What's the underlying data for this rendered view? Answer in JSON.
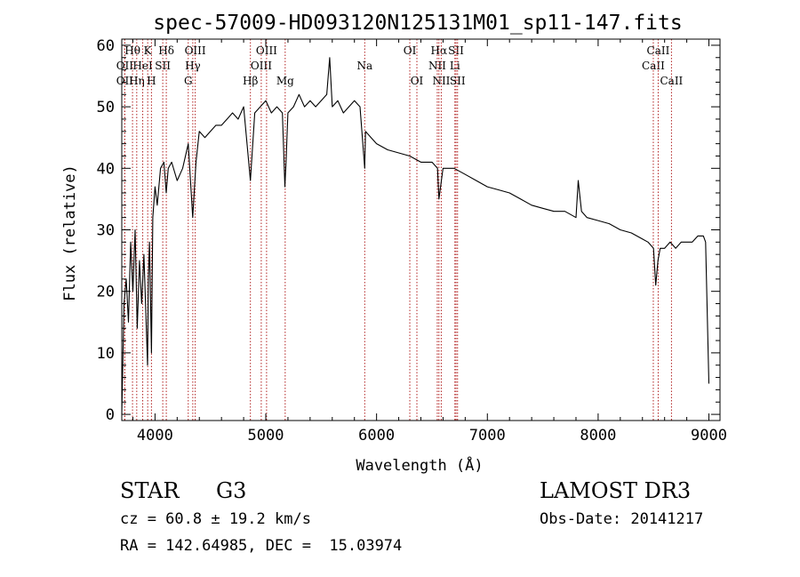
{
  "chart_data": {
    "type": "line",
    "title": "spec-57009-HD093120N125131M01_sp11-147.fits",
    "xlabel": "Wavelength (Å)",
    "ylabel": "Flux (relative)",
    "xlim": [
      3700,
      9100
    ],
    "ylim": [
      -1,
      61
    ],
    "xticks": [
      4000,
      5000,
      6000,
      7000,
      8000,
      9000
    ],
    "yticks": [
      0,
      10,
      20,
      30,
      40,
      50,
      60
    ],
    "grid": false,
    "line_color": "#000000",
    "marker_color": "#b22222",
    "series": [
      {
        "x": [
          3700,
          3720,
          3740,
          3760,
          3780,
          3800,
          3820,
          3840,
          3860,
          3880,
          3900,
          3920,
          3933,
          3940,
          3950,
          3968,
          3980,
          4000,
          4020,
          4050,
          4080,
          4101,
          4120,
          4150,
          4200,
          4250,
          4300,
          4340,
          4370,
          4400,
          4450,
          4500,
          4550,
          4600,
          4650,
          4700,
          4750,
          4800,
          4861,
          4900,
          4950,
          5000,
          5050,
          5100,
          5150,
          5172,
          5183,
          5200,
          5250,
          5300,
          5350,
          5400,
          5450,
          5500,
          5550,
          5577,
          5600,
          5650,
          5700,
          5750,
          5800,
          5850,
          5893,
          5900,
          5950,
          6000,
          6100,
          6200,
          6300,
          6400,
          6500,
          6550,
          6563,
          6600,
          6700,
          6800,
          6900,
          7000,
          7100,
          7200,
          7300,
          7400,
          7500,
          7600,
          7700,
          7800,
          7820,
          7850,
          7900,
          8000,
          8100,
          8200,
          8300,
          8400,
          8450,
          8500,
          8520,
          8540,
          8560,
          8600,
          8650,
          8700,
          8750,
          8800,
          8850,
          8900,
          8950,
          8970,
          9000
        ],
        "y": [
          0,
          18,
          22,
          15,
          28,
          20,
          30,
          14,
          25,
          18,
          26,
          15,
          8,
          22,
          28,
          10,
          32,
          37,
          34,
          40,
          41,
          36,
          40,
          41,
          38,
          40,
          44,
          32,
          41,
          46,
          45,
          46,
          47,
          47,
          48,
          49,
          48,
          50,
          38,
          49,
          50,
          51,
          49,
          50,
          49,
          37,
          41,
          49,
          50,
          52,
          50,
          51,
          50,
          51,
          52,
          58,
          50,
          51,
          49,
          50,
          51,
          50,
          40,
          46,
          45,
          44,
          43,
          42.5,
          42,
          41,
          41,
          40,
          35,
          40,
          40,
          39,
          38,
          37,
          36.5,
          36,
          35,
          34,
          33.5,
          33,
          33,
          32,
          38,
          33,
          32,
          31.5,
          31,
          30,
          29.5,
          28.5,
          28,
          27,
          21,
          25,
          27,
          27,
          28,
          27,
          28,
          28,
          28,
          29,
          29,
          28,
          5
        ]
      }
    ],
    "lines_top": [
      {
        "w": 3797,
        "label": "Hθ",
        "row": 0
      },
      {
        "w": 3727,
        "label": "OII",
        "row": 1
      },
      {
        "w": 3727,
        "label": "OII",
        "row": 2
      },
      {
        "w": 3835,
        "label": "Hη",
        "row": 2
      },
      {
        "w": 3889,
        "label": "HeI",
        "row": 1
      },
      {
        "w": 3934,
        "label": "K",
        "row": 0
      },
      {
        "w": 3968,
        "label": "H",
        "row": 2
      },
      {
        "w": 4070,
        "label": "SII",
        "row": 1
      },
      {
        "w": 4102,
        "label": "Hδ",
        "row": 0
      },
      {
        "w": 4300,
        "label": "G",
        "row": 2
      },
      {
        "w": 4341,
        "label": "Hγ",
        "row": 1
      },
      {
        "w": 4363,
        "label": "OIII",
        "row": 0
      },
      {
        "w": 4861,
        "label": "Hβ",
        "row": 2
      },
      {
        "w": 4959,
        "label": "OIII",
        "row": 1
      },
      {
        "w": 5007,
        "label": "OIII",
        "row": 0
      },
      {
        "w": 5175,
        "label": "Mg",
        "row": 2
      },
      {
        "w": 5893,
        "label": "Na",
        "row": 1
      },
      {
        "w": 6300,
        "label": "OI",
        "row": 0
      },
      {
        "w": 6364,
        "label": "OI",
        "row": 2
      },
      {
        "w": 6548,
        "label": "NII",
        "row": 1
      },
      {
        "w": 6563,
        "label": "Hα",
        "row": 0
      },
      {
        "w": 6584,
        "label": "NII",
        "row": 2
      },
      {
        "w": 6707,
        "label": "Li",
        "row": 1
      },
      {
        "w": 6717,
        "label": "SII",
        "row": 0
      },
      {
        "w": 6731,
        "label": "SII",
        "row": 2
      },
      {
        "w": 8498,
        "label": "CaII",
        "row": 1
      },
      {
        "w": 8542,
        "label": "CaII",
        "row": 0
      },
      {
        "w": 8662,
        "label": "CaII",
        "row": 2
      }
    ]
  },
  "info": {
    "class": "STAR",
    "subclass": "G3",
    "survey": "LAMOST DR3",
    "cz": "cz = 60.8 ± 19.2 km/s",
    "obs_date": "Obs-Date: 20141217",
    "coords": "RA = 142.64985, DEC =  15.03974"
  }
}
